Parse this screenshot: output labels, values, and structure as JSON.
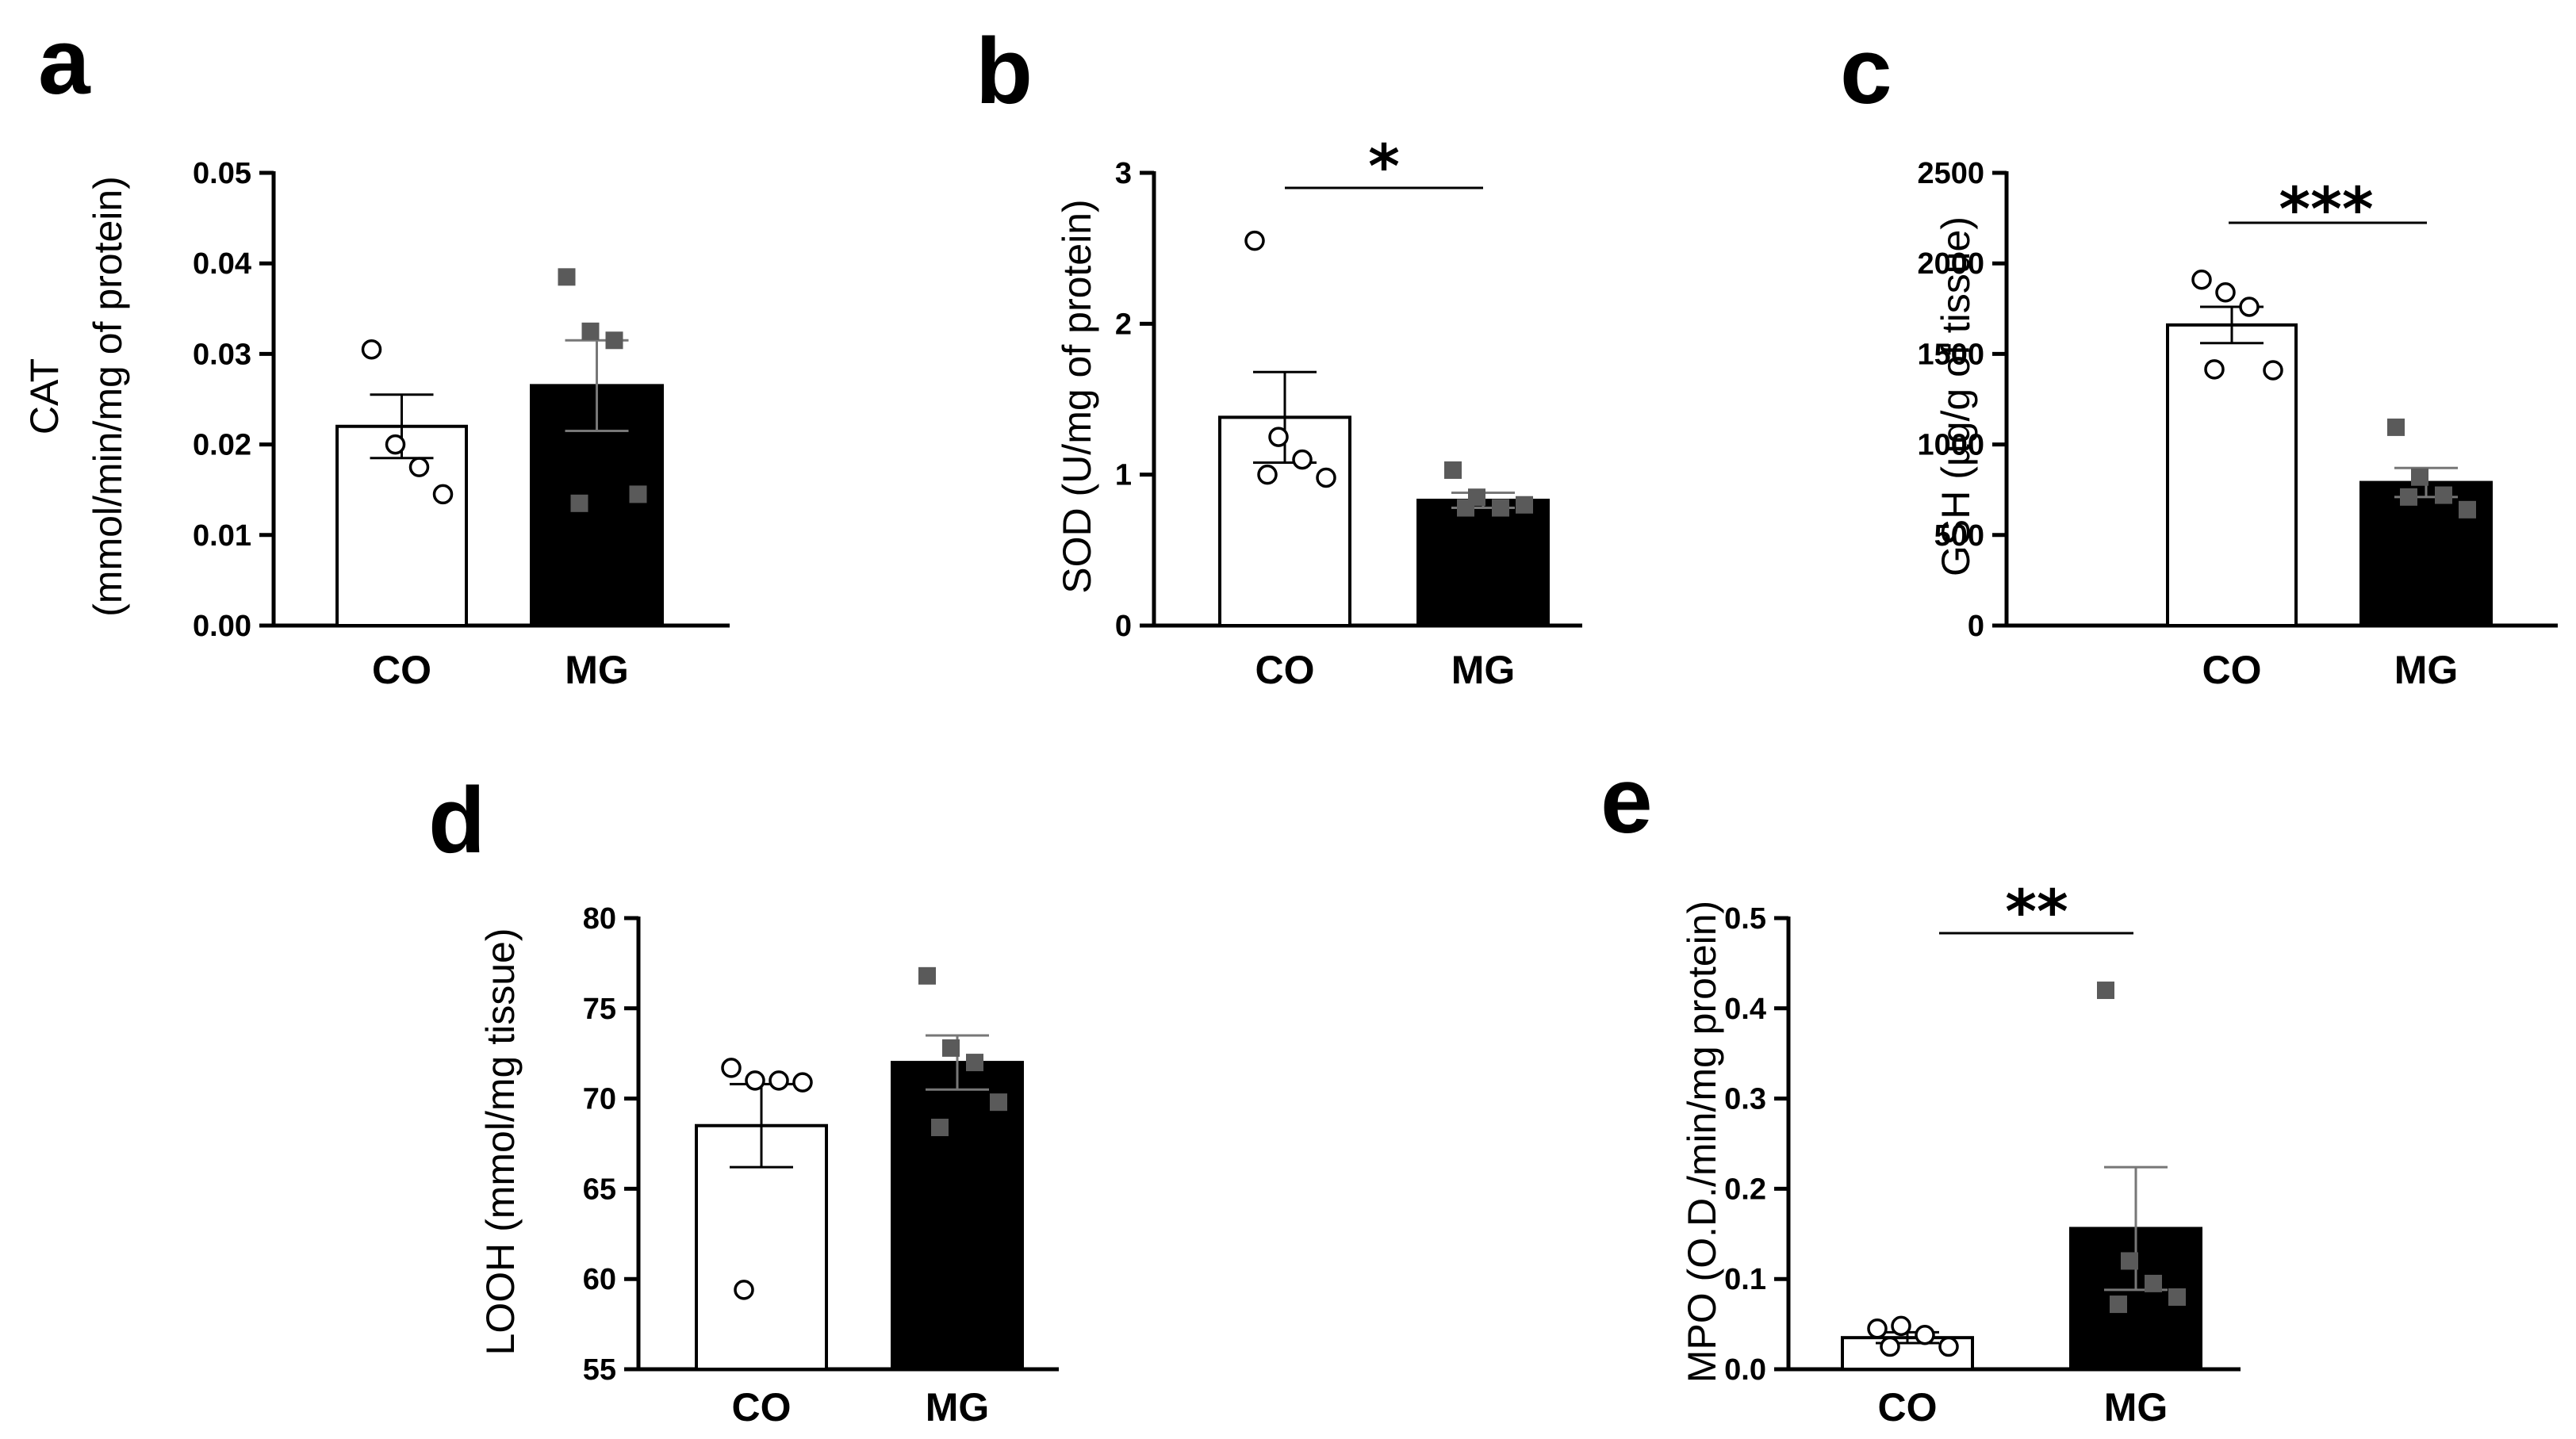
{
  "chart_data": [
    {
      "panel": "a",
      "type": "bar",
      "ylabel_lines": [
        "CAT",
        "(mmol/min/mg of protein)"
      ],
      "categories": [
        "CO",
        "MG"
      ],
      "values": [
        0.022,
        0.0265
      ],
      "errors": [
        0.0035,
        0.005
      ],
      "points": [
        [
          0.0305,
          0.02,
          0.0175,
          0.0145
        ],
        [
          0.0385,
          0.0325,
          0.0315,
          0.0145,
          0.0135
        ]
      ],
      "ylim": [
        0,
        0.05
      ],
      "yticks": [
        "0.00",
        "0.01",
        "0.02",
        "0.03",
        "0.04",
        "0.05"
      ],
      "significance": ""
    },
    {
      "panel": "b",
      "type": "bar",
      "ylabel_lines": [
        "SOD (U/mg of protein)"
      ],
      "categories": [
        "CO",
        "MG"
      ],
      "values": [
        1.38,
        0.83
      ],
      "errors": [
        0.3,
        0.05
      ],
      "points": [
        [
          2.55,
          1.25,
          1.1,
          0.98,
          1.0
        ],
        [
          1.03,
          0.85,
          0.78,
          0.8,
          0.78
        ]
      ],
      "ylim": [
        0,
        3
      ],
      "yticks": [
        "0",
        "1",
        "2",
        "3"
      ],
      "significance": "*"
    },
    {
      "panel": "c",
      "type": "bar",
      "ylabel_lines": [
        "GSH (µg/g of tissue)"
      ],
      "categories": [
        "CO",
        "MG"
      ],
      "values": [
        1660,
        790
      ],
      "errors": [
        100,
        80
      ],
      "points": [
        [
          1910,
          1840,
          1760,
          1410,
          1415
        ],
        [
          1095,
          820,
          720,
          640,
          710
        ]
      ],
      "ylim": [
        0,
        2500
      ],
      "yticks": [
        "0",
        "500",
        "1000",
        "1500",
        "2000",
        "2500"
      ],
      "significance": "***"
    },
    {
      "panel": "d",
      "type": "bar",
      "ylabel_lines": [
        "LOOH (mmol/mg tissue)"
      ],
      "categories": [
        "CO",
        "MG"
      ],
      "values": [
        68.5,
        72.0
      ],
      "errors": [
        2.3,
        1.5
      ],
      "points": [
        [
          71.7,
          71.0,
          71.0,
          70.9,
          59.4
        ],
        [
          76.8,
          72.8,
          72.0,
          69.8,
          68.4
        ]
      ],
      "ylim": [
        55,
        80
      ],
      "yticks": [
        "55",
        "60",
        "65",
        "70",
        "75",
        "80"
      ],
      "significance": ""
    },
    {
      "panel": "e",
      "type": "bar",
      "ylabel_lines": [
        "MPO (O.D./min/mg protein)"
      ],
      "categories": [
        "CO",
        "MG"
      ],
      "values": [
        0.035,
        0.156
      ],
      "errors": [
        0.006,
        0.068
      ],
      "points": [
        [
          0.045,
          0.048,
          0.038,
          0.025,
          0.025
        ],
        [
          0.42,
          0.12,
          0.095,
          0.08,
          0.072
        ]
      ],
      "ylim": [
        0,
        0.5
      ],
      "yticks": [
        "0.0",
        "0.1",
        "0.2",
        "0.3",
        "0.4",
        "0.5"
      ],
      "significance": "**"
    }
  ],
  "colors": {
    "axis": "#000000",
    "co_bar_fill": "#ffffff",
    "mg_bar_fill": "#000000",
    "co_marker_fill": "#ffffff",
    "co_marker_stroke": "#000000",
    "mg_marker_fill": "#5a5a5a",
    "mg_errorbar": "#777777"
  }
}
